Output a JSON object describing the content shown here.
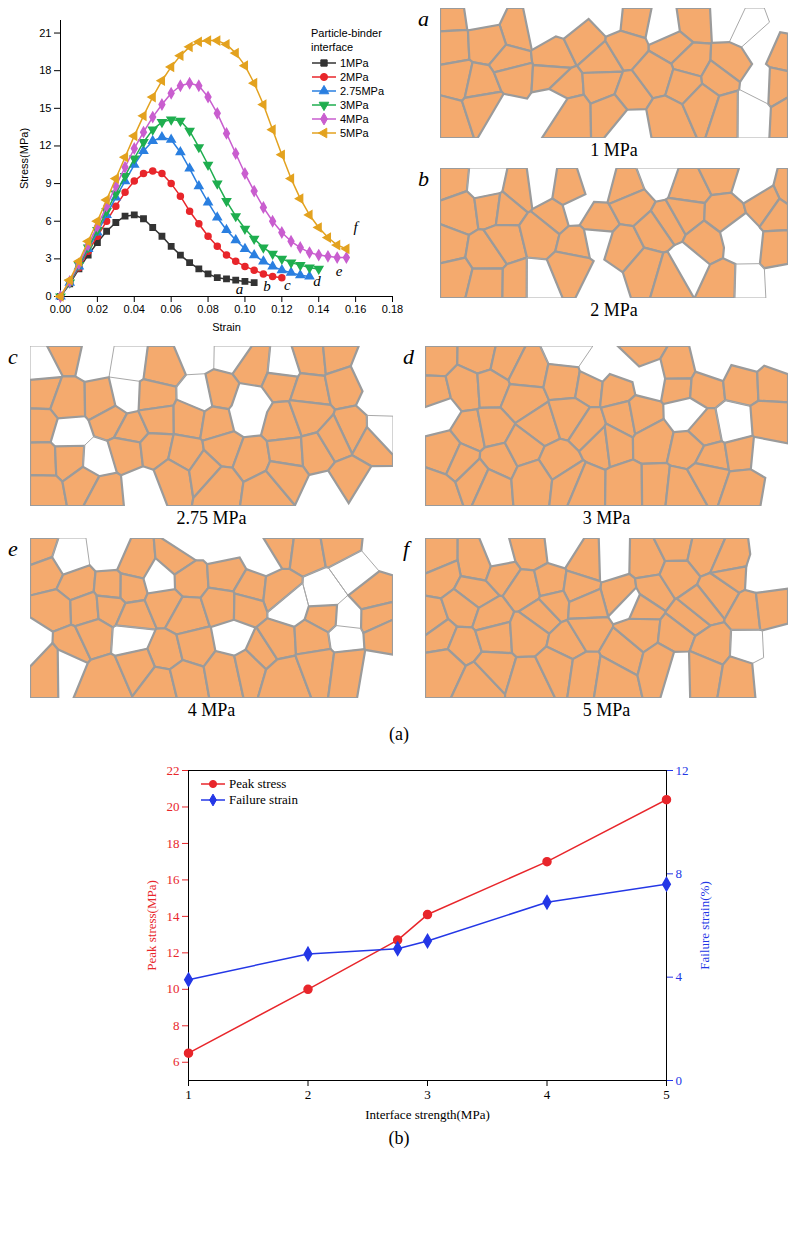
{
  "chart_data": [
    {
      "type": "line",
      "x_label": "Strain",
      "y_label": "Stress(MPa)",
      "xlim": [
        0,
        0.18
      ],
      "xticks": [
        {
          "value": 0,
          "label": "0.00"
        },
        {
          "value": 0.02,
          "label": "0.02"
        },
        {
          "value": 0.04,
          "label": "0.04"
        },
        {
          "value": 0.06,
          "label": "0.06"
        },
        {
          "value": 0.08,
          "label": "0.08"
        },
        {
          "value": 0.1,
          "label": "0.10"
        },
        {
          "value": 0.12,
          "label": "0.12"
        },
        {
          "value": 0.14,
          "label": "0.14"
        },
        {
          "value": 0.16,
          "label": "0.16"
        },
        {
          "value": 0.18,
          "label": "0.18"
        }
      ],
      "ylim": [
        0,
        22
      ],
      "yticks": [
        0,
        3,
        6,
        9,
        12,
        15,
        18,
        21
      ],
      "grid": false,
      "legend": "upper right",
      "legend_title": "Particle-binder interface",
      "series": [
        {
          "name": "1MPa",
          "color": "#333333",
          "marker": "square",
          "line_style": "solid",
          "x": [
            0,
            0.005,
            0.01,
            0.015,
            0.02,
            0.025,
            0.03,
            0.035,
            0.04,
            0.045,
            0.05,
            0.055,
            0.06,
            0.065,
            0.07,
            0.075,
            0.08,
            0.085,
            0.09,
            0.095,
            0.1,
            0.105
          ],
          "values": [
            0,
            1.0,
            2.2,
            3.3,
            4.3,
            5.2,
            5.9,
            6.4,
            6.5,
            6.2,
            5.5,
            4.8,
            4.0,
            3.3,
            2.7,
            2.2,
            1.8,
            1.5,
            1.4,
            1.3,
            1.2,
            1.1
          ]
        },
        {
          "name": "2MPa",
          "color": "#e8262b",
          "marker": "circle",
          "line_style": "solid",
          "x": [
            0,
            0.005,
            0.01,
            0.015,
            0.02,
            0.025,
            0.03,
            0.035,
            0.04,
            0.045,
            0.05,
            0.055,
            0.06,
            0.065,
            0.07,
            0.075,
            0.08,
            0.085,
            0.09,
            0.095,
            0.1,
            0.105,
            0.11,
            0.115,
            0.12
          ],
          "values": [
            0,
            1.1,
            2.3,
            3.6,
            4.8,
            6.0,
            7.2,
            8.3,
            9.2,
            9.8,
            10.0,
            9.8,
            9.0,
            8.0,
            6.8,
            5.8,
            4.8,
            4.0,
            3.3,
            2.8,
            2.4,
            2.1,
            1.8,
            1.6,
            1.5
          ]
        },
        {
          "name": "2.75MPa",
          "color": "#2a7fe0",
          "marker": "triangle",
          "line_style": "solid",
          "x": [
            0,
            0.005,
            0.01,
            0.015,
            0.02,
            0.025,
            0.03,
            0.035,
            0.04,
            0.045,
            0.05,
            0.055,
            0.06,
            0.065,
            0.07,
            0.075,
            0.08,
            0.085,
            0.09,
            0.095,
            0.1,
            0.105,
            0.11,
            0.115,
            0.12,
            0.125,
            0.13,
            0.135
          ],
          "values": [
            0,
            1.1,
            2.4,
            3.8,
            5.1,
            6.5,
            7.9,
            9.2,
            10.5,
            11.6,
            12.4,
            12.7,
            12.5,
            11.5,
            10.2,
            8.8,
            7.5,
            6.3,
            5.3,
            4.5,
            3.8,
            3.3,
            2.8,
            2.4,
            2.1,
            1.9,
            1.7,
            1.6
          ]
        },
        {
          "name": "3MPa",
          "color": "#1fae4f",
          "marker": "triangle-down",
          "line_style": "solid",
          "x": [
            0,
            0.005,
            0.01,
            0.015,
            0.02,
            0.025,
            0.03,
            0.035,
            0.04,
            0.045,
            0.05,
            0.055,
            0.06,
            0.065,
            0.07,
            0.075,
            0.08,
            0.085,
            0.09,
            0.095,
            0.1,
            0.105,
            0.11,
            0.115,
            0.12,
            0.125,
            0.13,
            0.135,
            0.14
          ],
          "values": [
            0,
            1.1,
            2.5,
            3.9,
            5.3,
            6.8,
            8.2,
            9.6,
            11.0,
            12.3,
            13.3,
            13.9,
            14.1,
            14.0,
            13.2,
            11.9,
            10.5,
            9.0,
            7.6,
            6.4,
            5.4,
            4.6,
            3.9,
            3.4,
            3.0,
            2.7,
            2.5,
            2.3,
            2.2
          ]
        },
        {
          "name": "4MPa",
          "color": "#c95ecf",
          "marker": "diamond",
          "line_style": "solid",
          "x": [
            0,
            0.005,
            0.01,
            0.015,
            0.02,
            0.025,
            0.03,
            0.035,
            0.04,
            0.045,
            0.05,
            0.055,
            0.06,
            0.065,
            0.07,
            0.075,
            0.08,
            0.085,
            0.09,
            0.095,
            0.1,
            0.105,
            0.11,
            0.115,
            0.12,
            0.125,
            0.13,
            0.135,
            0.14,
            0.145,
            0.15,
            0.155
          ],
          "values": [
            0,
            1.2,
            2.6,
            4.1,
            5.6,
            7.2,
            8.8,
            10.3,
            11.8,
            13.1,
            14.3,
            15.3,
            16.2,
            16.8,
            17.0,
            16.8,
            15.9,
            14.6,
            13.0,
            11.4,
            9.8,
            8.4,
            7.1,
            6.0,
            5.1,
            4.4,
            3.9,
            3.5,
            3.3,
            3.2,
            3.1,
            3.1
          ]
        },
        {
          "name": "5MPa",
          "color": "#e3a21f",
          "marker": "triangle-left",
          "line_style": "solid",
          "x": [
            0,
            0.005,
            0.01,
            0.015,
            0.02,
            0.025,
            0.03,
            0.035,
            0.04,
            0.045,
            0.05,
            0.055,
            0.06,
            0.065,
            0.07,
            0.075,
            0.08,
            0.085,
            0.09,
            0.095,
            0.1,
            0.105,
            0.11,
            0.115,
            0.12,
            0.125,
            0.13,
            0.135,
            0.14,
            0.145,
            0.15,
            0.155
          ],
          "values": [
            0,
            1.3,
            2.8,
            4.4,
            6.0,
            7.7,
            9.4,
            11.1,
            12.8,
            14.4,
            15.9,
            17.2,
            18.3,
            19.2,
            19.9,
            20.3,
            20.4,
            20.4,
            20.1,
            19.4,
            18.4,
            17.0,
            15.3,
            13.3,
            11.3,
            9.4,
            7.8,
            6.5,
            5.5,
            4.7,
            4.1,
            3.8
          ]
        }
      ],
      "annotations": [
        {
          "text": "a",
          "x": 0.097,
          "y": 0.55
        },
        {
          "text": "b",
          "x": 0.112,
          "y": 0.8
        },
        {
          "text": "c",
          "x": 0.123,
          "y": 0.9
        },
        {
          "text": "d",
          "x": 0.139,
          "y": 1.2
        },
        {
          "text": "e",
          "x": 0.151,
          "y": 2.0
        },
        {
          "text": "f",
          "x": 0.16,
          "y": 5.5
        }
      ]
    },
    {
      "type": "line",
      "x_label": "Interface strength(MPa)",
      "y_label": "Peak stress(MPa)",
      "y2_label": "Failure strain(%)",
      "x": [
        1,
        2,
        2.75,
        3,
        4,
        5
      ],
      "xlim": [
        1,
        5
      ],
      "xticks": [
        1,
        2,
        3,
        4,
        5
      ],
      "ylim": [
        5,
        22
      ],
      "yticks": [
        6,
        8,
        10,
        12,
        14,
        16,
        18,
        20,
        22
      ],
      "y2lim": [
        0,
        12
      ],
      "y2ticks": [
        0,
        4,
        8,
        12
      ],
      "grid": false,
      "legend": "upper left",
      "series": [
        {
          "name": "Peak stress",
          "color": "#e8262b",
          "marker": "circle",
          "line_style": "solid",
          "values": [
            6.5,
            10.0,
            12.7,
            14.1,
            17.0,
            20.4
          ]
        },
        {
          "name": "Failure strain",
          "color": "#2437e6",
          "marker": "diamond",
          "line_style": "solid",
          "axis": "y2",
          "values": [
            3.9,
            4.9,
            5.1,
            5.4,
            6.9,
            7.6
          ]
        }
      ]
    }
  ],
  "panels": [
    {
      "letter": "a",
      "caption": "1 MPa"
    },
    {
      "letter": "b",
      "caption": "2 MPa"
    },
    {
      "letter": "c",
      "caption": "2.75 MPa"
    },
    {
      "letter": "d",
      "caption": "3 MPa"
    },
    {
      "letter": "e",
      "caption": "4 MPa"
    },
    {
      "letter": "f",
      "caption": "5 MPa"
    }
  ],
  "figure_labels": [
    "(a)",
    "(b)"
  ]
}
